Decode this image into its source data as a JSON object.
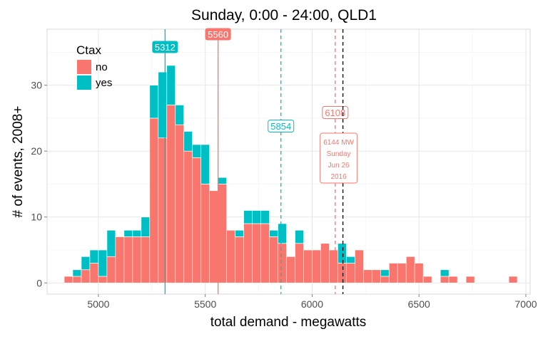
{
  "chart_data": {
    "type": "bar",
    "title": "Sunday, 0:00 - 24:00, QLD1",
    "xlabel": "total demand - megawatts",
    "ylabel": "# of events, 2008+",
    "xlim": [
      4760,
      7020
    ],
    "ylim": [
      -1.7,
      38.5
    ],
    "x_ticks": [
      5000,
      5500,
      6000,
      6500,
      7000
    ],
    "y_ticks": [
      0,
      10,
      20,
      30
    ],
    "bin_width": 40,
    "stacked": true,
    "grid": true,
    "legend_position": "top-left",
    "legend": {
      "title": "Ctax",
      "entries": [
        {
          "label": "no",
          "color": "#F8766D"
        },
        {
          "label": "yes",
          "color": "#00BFC4"
        }
      ]
    },
    "bin_starts": [
      4840,
      4880,
      4920,
      4960,
      5000,
      5040,
      5080,
      5120,
      5160,
      5200,
      5240,
      5280,
      5320,
      5360,
      5400,
      5440,
      5480,
      5520,
      5560,
      5600,
      5640,
      5680,
      5720,
      5760,
      5800,
      5840,
      5880,
      5920,
      5960,
      6000,
      6040,
      6080,
      6120,
      6160,
      6200,
      6240,
      6280,
      6320,
      6360,
      6400,
      6440,
      6480,
      6520,
      6560,
      6600,
      6640,
      6680,
      6720,
      6760,
      6800,
      6840,
      6880,
      6920
    ],
    "series": [
      {
        "name": "no",
        "color": "#F8766D",
        "values": [
          1,
          1,
          2,
          3,
          1,
          4,
          7,
          7,
          7,
          7,
          25,
          22,
          27,
          24,
          20,
          19,
          15,
          14,
          15,
          8,
          7,
          9,
          9,
          9,
          7,
          6,
          4,
          6,
          5,
          5,
          6,
          5,
          3,
          3,
          5,
          2,
          2,
          1,
          3,
          3,
          4,
          3,
          1,
          0,
          1,
          1,
          0,
          1,
          0,
          0,
          0,
          0,
          1
        ]
      },
      {
        "name": "yes",
        "color": "#00BFC4",
        "values": [
          0,
          1,
          2,
          2,
          4,
          4,
          0,
          1,
          1,
          3,
          5,
          10,
          6,
          3,
          3,
          2,
          6,
          0,
          1,
          0,
          1,
          2,
          2,
          2,
          1,
          3,
          0,
          2,
          0,
          0,
          0,
          0,
          3,
          1,
          0,
          0,
          0,
          1,
          0,
          0,
          0,
          0,
          0,
          0,
          1,
          0,
          0,
          0,
          0,
          0,
          0,
          0,
          0
        ]
      }
    ],
    "reference_lines": [
      {
        "x": 5312,
        "color": "#00BFC4",
        "style": "solid",
        "label": "5312",
        "label_style": "filled"
      },
      {
        "x": 5560,
        "color": "#F8766D",
        "style": "solid",
        "label": "5560",
        "label_style": "filled"
      },
      {
        "x": 5854,
        "color": "#00BFC4",
        "style": "dashed",
        "label": "5854",
        "label_style": "outline"
      },
      {
        "x": 6108,
        "color": "#F8766D",
        "style": "dashed",
        "label": "6108",
        "label_style": "outline"
      },
      {
        "x": 6144,
        "color": "#000000",
        "style": "dashed",
        "label": "",
        "label_style": "none"
      }
    ],
    "annotation": {
      "lines": [
        "6144 MW",
        "Sunday",
        "Jun 26",
        "2016"
      ],
      "color": "#F8766D"
    }
  }
}
